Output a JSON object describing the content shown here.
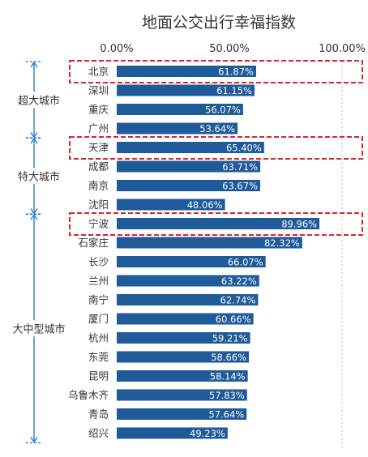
{
  "chart_data": {
    "type": "bar",
    "title": "地面公交出行幸福指数",
    "xlabel": "",
    "ylabel": "",
    "xlim": [
      0,
      100
    ],
    "xticks": [
      "0.00%",
      "50.00%",
      "100.00%"
    ],
    "grid": false,
    "bar_color": "#1f5a99",
    "highlight_color": "#d9262c",
    "categories": [
      "北京",
      "深圳",
      "重庆",
      "广州",
      "天津",
      "成都",
      "南京",
      "沈阳",
      "宁波",
      "石家庄",
      "长沙",
      "兰州",
      "南宁",
      "厦门",
      "杭州",
      "东莞",
      "昆明",
      "乌鲁木齐",
      "青岛",
      "绍兴"
    ],
    "values": [
      61.87,
      61.15,
      56.07,
      53.64,
      65.4,
      63.71,
      63.67,
      48.06,
      89.96,
      82.32,
      66.07,
      63.22,
      62.74,
      60.66,
      59.21,
      58.66,
      58.14,
      57.83,
      57.64,
      49.23
    ],
    "value_labels": [
      "61.87%",
      "61.15%",
      "56.07%",
      "53.64%",
      "65.40%",
      "63.71%",
      "63.67%",
      "48.06%",
      "89.96%",
      "82.32%",
      "66.07%",
      "63.22%",
      "62.74%",
      "60.66%",
      "59.21%",
      "58.66%",
      "58.14%",
      "57.83%",
      "57.64%",
      "49.23%"
    ],
    "groups": [
      {
        "label": "超大城市",
        "categories": [
          "北京",
          "深圳",
          "重庆",
          "广州"
        ]
      },
      {
        "label": "特大城市",
        "categories": [
          "天津",
          "成都",
          "南京",
          "沈阳"
        ]
      },
      {
        "label": "大中型城市",
        "categories": [
          "宁波",
          "石家庄",
          "长沙",
          "兰州",
          "南宁",
          "厦门",
          "杭州",
          "东莞",
          "昆明",
          "乌鲁木齐",
          "青岛",
          "绍兴"
        ]
      }
    ],
    "highlighted": [
      "北京",
      "天津",
      "宁波"
    ]
  }
}
